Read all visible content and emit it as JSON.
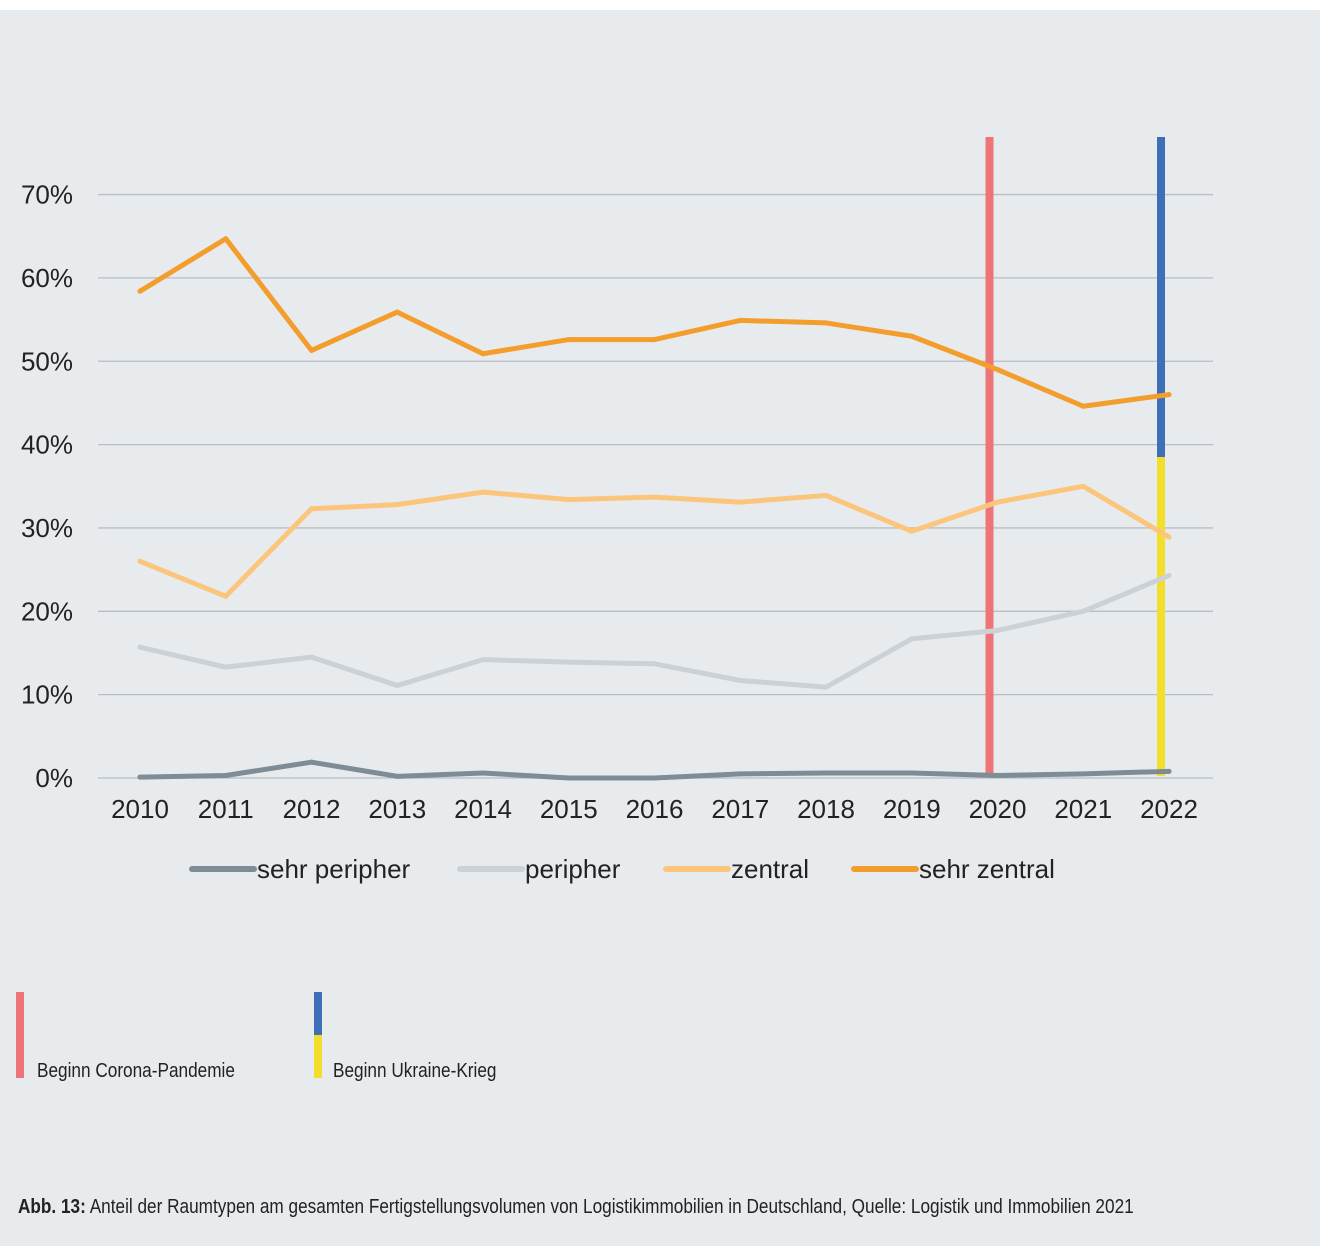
{
  "chart_data": {
    "type": "line",
    "categories": [
      "2010",
      "2011",
      "2012",
      "2013",
      "2014",
      "2015",
      "2016",
      "2017",
      "2018",
      "2019",
      "2020",
      "2021",
      "2022"
    ],
    "y_ticks": [
      "0%",
      "10%",
      "20%",
      "30%",
      "40%",
      "50%",
      "60%",
      "70%"
    ],
    "ylim": [
      0,
      77
    ],
    "grid": true,
    "legend_position": "bottom",
    "series": [
      {
        "name": "sehr peripher",
        "color": "#7e8c95",
        "values": [
          0.1,
          0.3,
          1.9,
          0.2,
          0.6,
          0.0,
          0.0,
          0.5,
          0.6,
          0.6,
          0.3,
          0.5,
          0.8
        ]
      },
      {
        "name": "peripher",
        "color": "#cbd1d4",
        "values": [
          15.7,
          13.3,
          14.5,
          11.1,
          14.2,
          13.9,
          13.7,
          11.7,
          10.9,
          16.7,
          17.7,
          20.0,
          24.3
        ]
      },
      {
        "name": "zentral",
        "color": "#fbc57c",
        "values": [
          26.0,
          21.8,
          32.3,
          32.8,
          34.3,
          33.4,
          33.7,
          33.1,
          33.9,
          29.6,
          33.1,
          35.0,
          28.9
        ]
      },
      {
        "name": "sehr zentral",
        "color": "#f29d2c",
        "values": [
          58.4,
          64.7,
          51.3,
          55.9,
          50.9,
          52.6,
          52.6,
          54.9,
          54.6,
          53.0,
          49.0,
          44.6,
          46.0
        ]
      }
    ],
    "markers": [
      {
        "category": "2020",
        "label": "Beginn Corona-Pandemie",
        "colors": [
          "#ee7577"
        ]
      },
      {
        "category": "2022",
        "label": "Beginn Ukraine-Krieg",
        "colors": [
          "#3d70b8",
          "#f3de2c"
        ]
      }
    ]
  },
  "marker_legend": {
    "corona": "Beginn Corona-Pandemie",
    "ukraine": "Beginn Ukraine-Krieg"
  },
  "caption": {
    "label": "Abb. 13:",
    "text": " Anteil der Raumtypen am gesamten Fertigstellungsvolumen von Logistikimmobilien in Deutschland, Quelle: Logistik und Immobilien 2021"
  }
}
